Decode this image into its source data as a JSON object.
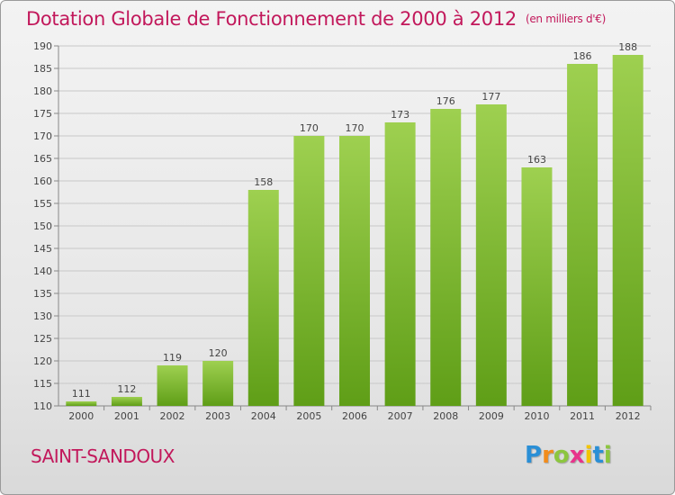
{
  "title": "Dotation Globale de Fonctionnement de 2000 à 2012",
  "subtitle": "(en milliers d'€)",
  "commune": "SAINT-SANDOUX",
  "logo": {
    "letters": [
      "P",
      "r",
      "o",
      "x",
      "i",
      "t",
      "i"
    ],
    "colors": [
      "#2a8fd6",
      "#f28c1b",
      "#8cc63f",
      "#e8338b",
      "#f2c500",
      "#2a8fd6",
      "#8cc63f"
    ]
  },
  "colors": {
    "title": "#c2185b",
    "bar_light": "#9ed050",
    "bar_dark": "#5f9e17"
  },
  "chart_data": {
    "type": "bar",
    "categories": [
      "2000",
      "2001",
      "2002",
      "2003",
      "2004",
      "2005",
      "2006",
      "2007",
      "2008",
      "2009",
      "2010",
      "2011",
      "2012"
    ],
    "values": [
      111,
      112,
      119,
      120,
      158,
      170,
      170,
      173,
      176,
      177,
      163,
      186,
      188
    ],
    "ylim": [
      110,
      190
    ],
    "yticks": [
      110,
      115,
      120,
      125,
      130,
      135,
      140,
      145,
      150,
      155,
      160,
      165,
      170,
      175,
      180,
      185,
      190
    ],
    "grid": true,
    "data_labels": true
  }
}
